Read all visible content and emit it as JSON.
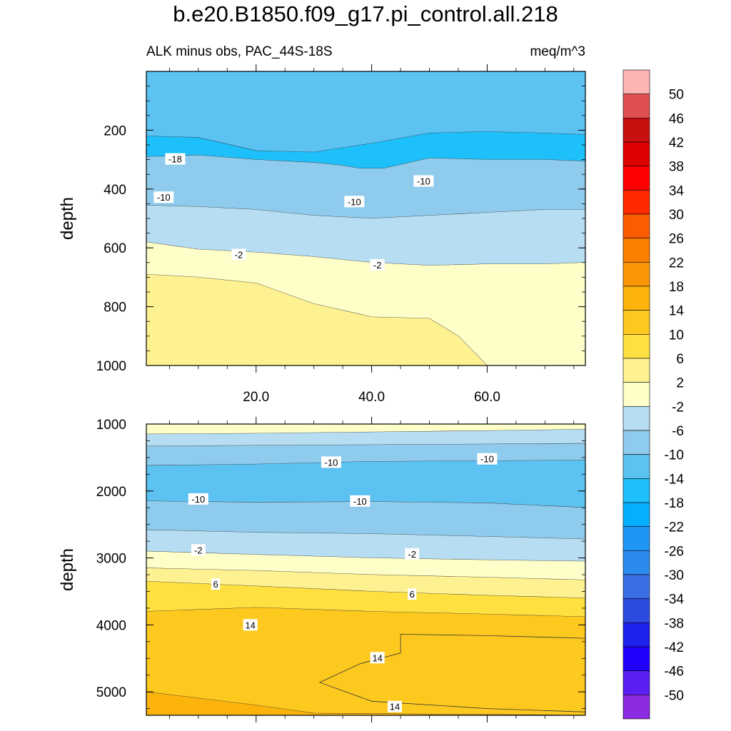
{
  "chart_data": {
    "type": "heatmap",
    "title": "b.e20.B1850.f09_g17.pi_control.all.218",
    "subtitle_left": "ALK minus obs, PAC_44S-18S",
    "subtitle_right": "meq/m^3",
    "colorbar": {
      "colors": [
        "#8b2be2",
        "#5a1ff2",
        "#1f00ff",
        "#1e22ee",
        "#2e4bdf",
        "#3a6fe6",
        "#2a8aee",
        "#1e96f6",
        "#05aefe",
        "#1ec0fb",
        "#5cc2f2",
        "#8fcbec",
        "#b6ddf2",
        "#fefec8",
        "#fef191",
        "#fee040",
        "#fdc91f",
        "#fcb40c",
        "#fb9705",
        "#fd7f00",
        "#fd5b00",
        "#ff2a00",
        "#ff0000",
        "#de0000",
        "#c91010",
        "#e05050",
        "#fdb4b4"
      ],
      "tick_labels": [
        "-50",
        "-46",
        "-42",
        "-38",
        "-34",
        "-30",
        "-26",
        "-22",
        "-18",
        "-14",
        "-10",
        "-6",
        "-2",
        "2",
        "6",
        "10",
        "14",
        "18",
        "22",
        "26",
        "30",
        "34",
        "38",
        "42",
        "46",
        "50"
      ]
    },
    "panels": [
      {
        "name": "upper",
        "ylabel": "depth",
        "xlim": [
          1,
          77
        ],
        "ylim": [
          1000,
          0
        ],
        "x_ticks": [
          20,
          40,
          60
        ],
        "x_tick_labels": [
          "20.0",
          "40.0",
          "60.0"
        ],
        "y_ticks": [
          200,
          400,
          600,
          800,
          1000
        ],
        "y_tick_labels": [
          "200",
          "400",
          "600",
          "800",
          "1000"
        ],
        "bands": [
          {
            "color": "#5cc2f2",
            "top": "flat",
            "bottom": [
              [
                1,
                220
              ],
              [
                10,
                225
              ],
              [
                20,
                270
              ],
              [
                30,
                275
              ],
              [
                40,
                245
              ],
              [
                50,
                210
              ],
              [
                60,
                205
              ],
              [
                70,
                210
              ],
              [
                77,
                215
              ]
            ]
          },
          {
            "color": "#1ec0fb",
            "bottom": [
              [
                1,
                290
              ],
              [
                10,
                285
              ],
              [
                20,
                300
              ],
              [
                30,
                310
              ],
              [
                35,
                320
              ],
              [
                38,
                330
              ],
              [
                42,
                330
              ],
              [
                50,
                295
              ],
              [
                60,
                300
              ],
              [
                70,
                300
              ],
              [
                77,
                305
              ]
            ]
          },
          {
            "color": "#8fcbec",
            "bottom": [
              [
                1,
                455
              ],
              [
                10,
                460
              ],
              [
                20,
                470
              ],
              [
                30,
                490
              ],
              [
                40,
                500
              ],
              [
                50,
                490
              ],
              [
                60,
                480
              ],
              [
                70,
                470
              ],
              [
                77,
                470
              ]
            ]
          },
          {
            "color": "#b6ddf2",
            "bottom": [
              [
                1,
                580
              ],
              [
                10,
                605
              ],
              [
                20,
                615
              ],
              [
                30,
                630
              ],
              [
                40,
                650
              ],
              [
                50,
                660
              ],
              [
                60,
                655
              ],
              [
                70,
                655
              ],
              [
                77,
                650
              ]
            ]
          },
          {
            "color": "#fefec8",
            "bottom": [
              [
                1,
                690
              ],
              [
                10,
                700
              ],
              [
                20,
                720
              ],
              [
                30,
                790
              ],
              [
                40,
                835
              ],
              [
                50,
                840
              ],
              [
                55,
                900
              ],
              [
                60,
                1000
              ],
              [
                77,
                1000
              ]
            ]
          },
          {
            "color": "#fef191",
            "bottom": "flat"
          }
        ],
        "labels": [
          {
            "text": "-18",
            "x": 6,
            "y": 300
          },
          {
            "text": "-10",
            "x": 49,
            "y": 375
          },
          {
            "text": "-10",
            "x": 4,
            "y": 430
          },
          {
            "text": "-10",
            "x": 37,
            "y": 445
          },
          {
            "text": "-2",
            "x": 17,
            "y": 625
          },
          {
            "text": "-2",
            "x": 41,
            "y": 660
          }
        ]
      },
      {
        "name": "lower",
        "ylabel": "depth",
        "xlim": [
          1,
          77
        ],
        "ylim": [
          5350,
          1000
        ],
        "x_ticks": [
          20,
          40,
          60
        ],
        "y_ticks": [
          1000,
          2000,
          3000,
          4000,
          5000
        ],
        "y_tick_labels": [
          "1000",
          "2000",
          "3000",
          "4000",
          "5000"
        ],
        "bands": [
          {
            "color": "#fefec8",
            "top": "flat",
            "bottom": [
              [
                1,
                1150
              ],
              [
                20,
                1140
              ],
              [
                40,
                1120
              ],
              [
                60,
                1100
              ],
              [
                77,
                1080
              ]
            ]
          },
          {
            "color": "#b6ddf2",
            "bottom": [
              [
                1,
                1330
              ],
              [
                20,
                1320
              ],
              [
                40,
                1310
              ],
              [
                60,
                1300
              ],
              [
                77,
                1290
              ]
            ]
          },
          {
            "color": "#8fcbec",
            "bottom": [
              [
                1,
                1620
              ],
              [
                20,
                1600
              ],
              [
                40,
                1560
              ],
              [
                60,
                1550
              ],
              [
                77,
                1540
              ]
            ]
          },
          {
            "color": "#5cc2f2",
            "bottom": [
              [
                1,
                2150
              ],
              [
                20,
                2170
              ],
              [
                40,
                2160
              ],
              [
                60,
                2180
              ],
              [
                77,
                2250
              ]
            ]
          },
          {
            "color": "#8fcbec",
            "bottom": [
              [
                1,
                2580
              ],
              [
                20,
                2620
              ],
              [
                40,
                2640
              ],
              [
                60,
                2680
              ],
              [
                77,
                2720
              ]
            ]
          },
          {
            "color": "#b6ddf2",
            "bottom": [
              [
                1,
                2900
              ],
              [
                20,
                2950
              ],
              [
                40,
                3000
              ],
              [
                60,
                3030
              ],
              [
                77,
                3050
              ]
            ]
          },
          {
            "color": "#fefec8",
            "bottom": [
              [
                1,
                3150
              ],
              [
                20,
                3190
              ],
              [
                40,
                3250
              ],
              [
                60,
                3290
              ],
              [
                77,
                3330
              ]
            ]
          },
          {
            "color": "#fef191",
            "bottom": [
              [
                1,
                3350
              ],
              [
                20,
                3420
              ],
              [
                40,
                3500
              ],
              [
                60,
                3560
              ],
              [
                77,
                3600
              ]
            ]
          },
          {
            "color": "#fee040",
            "bottom": [
              [
                1,
                3800
              ],
              [
                20,
                3740
              ],
              [
                40,
                3800
              ],
              [
                60,
                3840
              ],
              [
                77,
                3880
              ]
            ]
          },
          {
            "color": "#fdc91f",
            "bottom": [
              [
                1,
                5000
              ],
              [
                20,
                5200
              ],
              [
                30,
                5320
              ],
              [
                77,
                5350
              ]
            ]
          },
          {
            "color": "#fcb40c",
            "bottom": "flat"
          }
        ],
        "inner": [
          {
            "color": "#fdc91f",
            "points": [
              [
                45,
                4140
              ],
              [
                45,
                4420
              ],
              [
                38,
                4580
              ],
              [
                31,
                4860
              ],
              [
                40,
                5140
              ],
              [
                60,
                5250
              ],
              [
                77,
                5300
              ],
              [
                77,
                4200
              ],
              [
                60,
                4160
              ]
            ]
          }
        ],
        "labels": [
          {
            "text": "-10",
            "x": 33,
            "y": 1580
          },
          {
            "text": "-10",
            "x": 60,
            "y": 1530
          },
          {
            "text": "-10",
            "x": 10,
            "y": 2130
          },
          {
            "text": "-10",
            "x": 38,
            "y": 2160
          },
          {
            "text": "-2",
            "x": 10,
            "y": 2890
          },
          {
            "text": "-2",
            "x": 47,
            "y": 2950
          },
          {
            "text": "6",
            "x": 13,
            "y": 3400
          },
          {
            "text": "6",
            "x": 47,
            "y": 3550
          },
          {
            "text": "14",
            "x": 19,
            "y": 4010
          },
          {
            "text": "14",
            "x": 41,
            "y": 4500
          },
          {
            "text": "14",
            "x": 44,
            "y": 5230
          }
        ]
      }
    ]
  }
}
